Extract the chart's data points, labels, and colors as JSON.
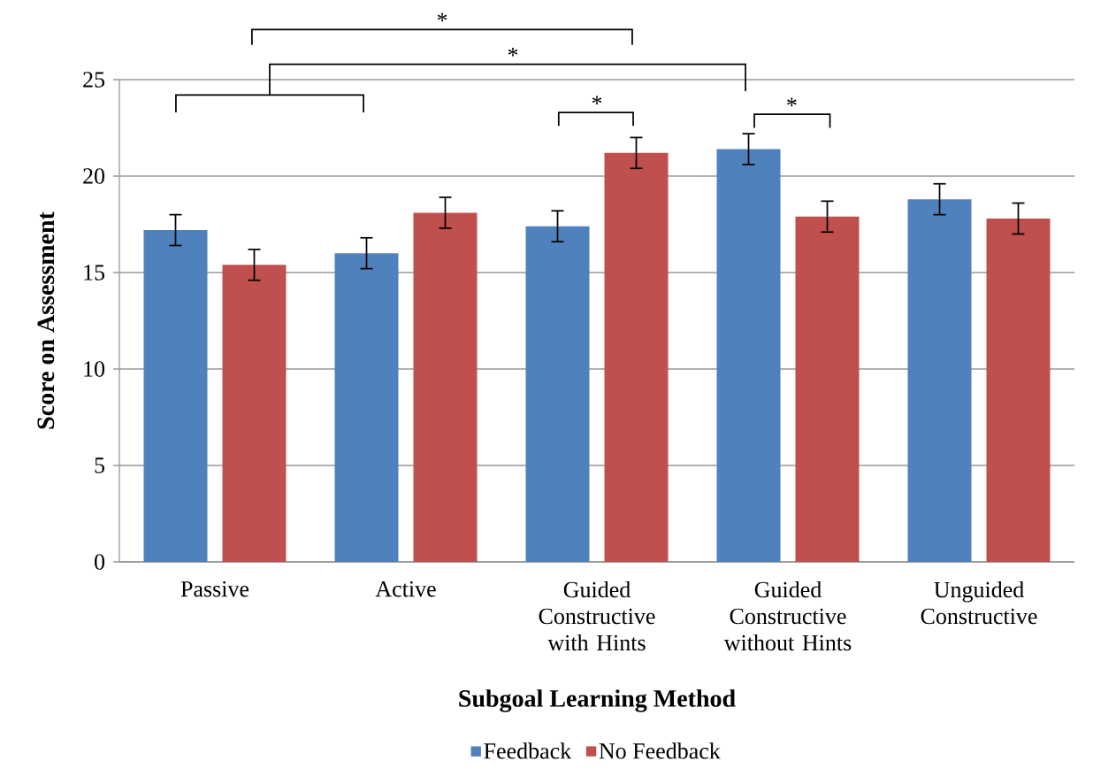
{
  "chart_data": {
    "type": "bar",
    "xlabel": "Subgoal Learning Method",
    "ylabel": "Score on Assessment",
    "categories": [
      "Passive",
      "Active",
      "Guided Constructive with Hints",
      "Guided Constructive without Hints",
      "Unguided Constructive"
    ],
    "series": [
      {
        "name": "Feedback",
        "color": "#4f81bd",
        "values": [
          17.2,
          16.0,
          17.4,
          21.4,
          18.8
        ],
        "errors": [
          0.8,
          0.8,
          0.8,
          0.8,
          0.8
        ]
      },
      {
        "name": "No Feedback",
        "color": "#c0504d",
        "values": [
          15.4,
          18.1,
          21.2,
          17.9,
          17.8
        ],
        "errors": [
          0.8,
          0.8,
          0.8,
          0.8,
          0.8
        ]
      }
    ],
    "ylim": [
      0,
      25
    ],
    "yticks": [
      0,
      5,
      10,
      15,
      20,
      25
    ],
    "grid": "y",
    "legend": "bottom",
    "annotations": [
      "*",
      "*",
      "*",
      "*"
    ]
  }
}
